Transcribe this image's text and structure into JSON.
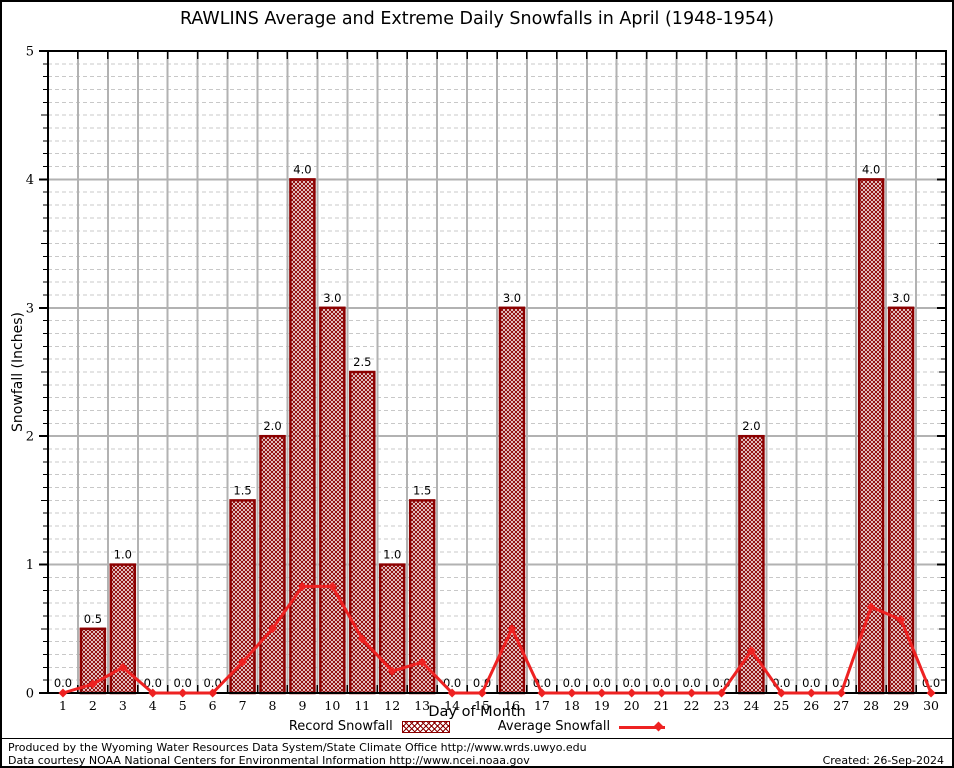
{
  "title": "RAWLINS Average and Extreme Daily Snowfalls in April (1948-1954)",
  "chart_data": {
    "type": "bar+line",
    "title": "RAWLINS Average and Extreme Daily Snowfalls in April (1948-1954)",
    "xlabel": "Day of Month",
    "ylabel": "Snowfall (Inches)",
    "ylim": [
      0,
      5
    ],
    "y_major_ticks": [
      0,
      1,
      2,
      3,
      4,
      5
    ],
    "y_minor_step": 0.1,
    "grid": "major solid gray, minor dashed; vertical lines at day boundaries",
    "legend_position": "bottom",
    "categories": [
      1,
      2,
      3,
      4,
      5,
      6,
      7,
      8,
      9,
      10,
      11,
      12,
      13,
      14,
      15,
      16,
      17,
      18,
      19,
      20,
      21,
      22,
      23,
      24,
      25,
      26,
      27,
      28,
      29,
      30
    ],
    "series": [
      {
        "name": "Record Snowfall",
        "type": "bar",
        "color": "#8b0000",
        "fill": "crosshatch",
        "values": [
          0.0,
          0.5,
          1.0,
          0.0,
          0.0,
          0.0,
          1.5,
          2.0,
          4.0,
          3.0,
          2.5,
          1.0,
          1.5,
          0.0,
          0.0,
          3.0,
          0.0,
          0.0,
          0.0,
          0.0,
          0.0,
          0.0,
          0.0,
          2.0,
          0.0,
          0.0,
          0.0,
          4.0,
          3.0,
          0.0
        ]
      },
      {
        "name": "Average Snowfall",
        "type": "line",
        "color": "#ee2222",
        "marker": "diamond",
        "values": [
          0.0,
          0.07,
          0.2,
          0.0,
          0.0,
          0.0,
          0.24,
          0.5,
          0.83,
          0.83,
          0.42,
          0.17,
          0.24,
          0.0,
          0.0,
          0.5,
          0.0,
          0.0,
          0.0,
          0.0,
          0.0,
          0.0,
          0.0,
          0.33,
          0.0,
          0.0,
          0.0,
          0.67,
          0.57,
          0.0
        ]
      }
    ]
  },
  "legend": {
    "record_label": "Record Snowfall",
    "average_label": "Average Snowfall"
  },
  "footer": {
    "line1": "Produced by the Wyoming Water Resources Data System/State Climate Office http://www.wrds.uwyo.edu",
    "line2": "Data courtesy NOAA National Centers for Environmental Information http://www.ncei.noaa.gov",
    "created": "Created: 26-Sep-2024"
  },
  "colors": {
    "bar": "#8b0000",
    "line": "#ee2222",
    "grid_major": "#b2b2b2",
    "grid_minor": "#c8c8c8",
    "axis": "#000000"
  }
}
